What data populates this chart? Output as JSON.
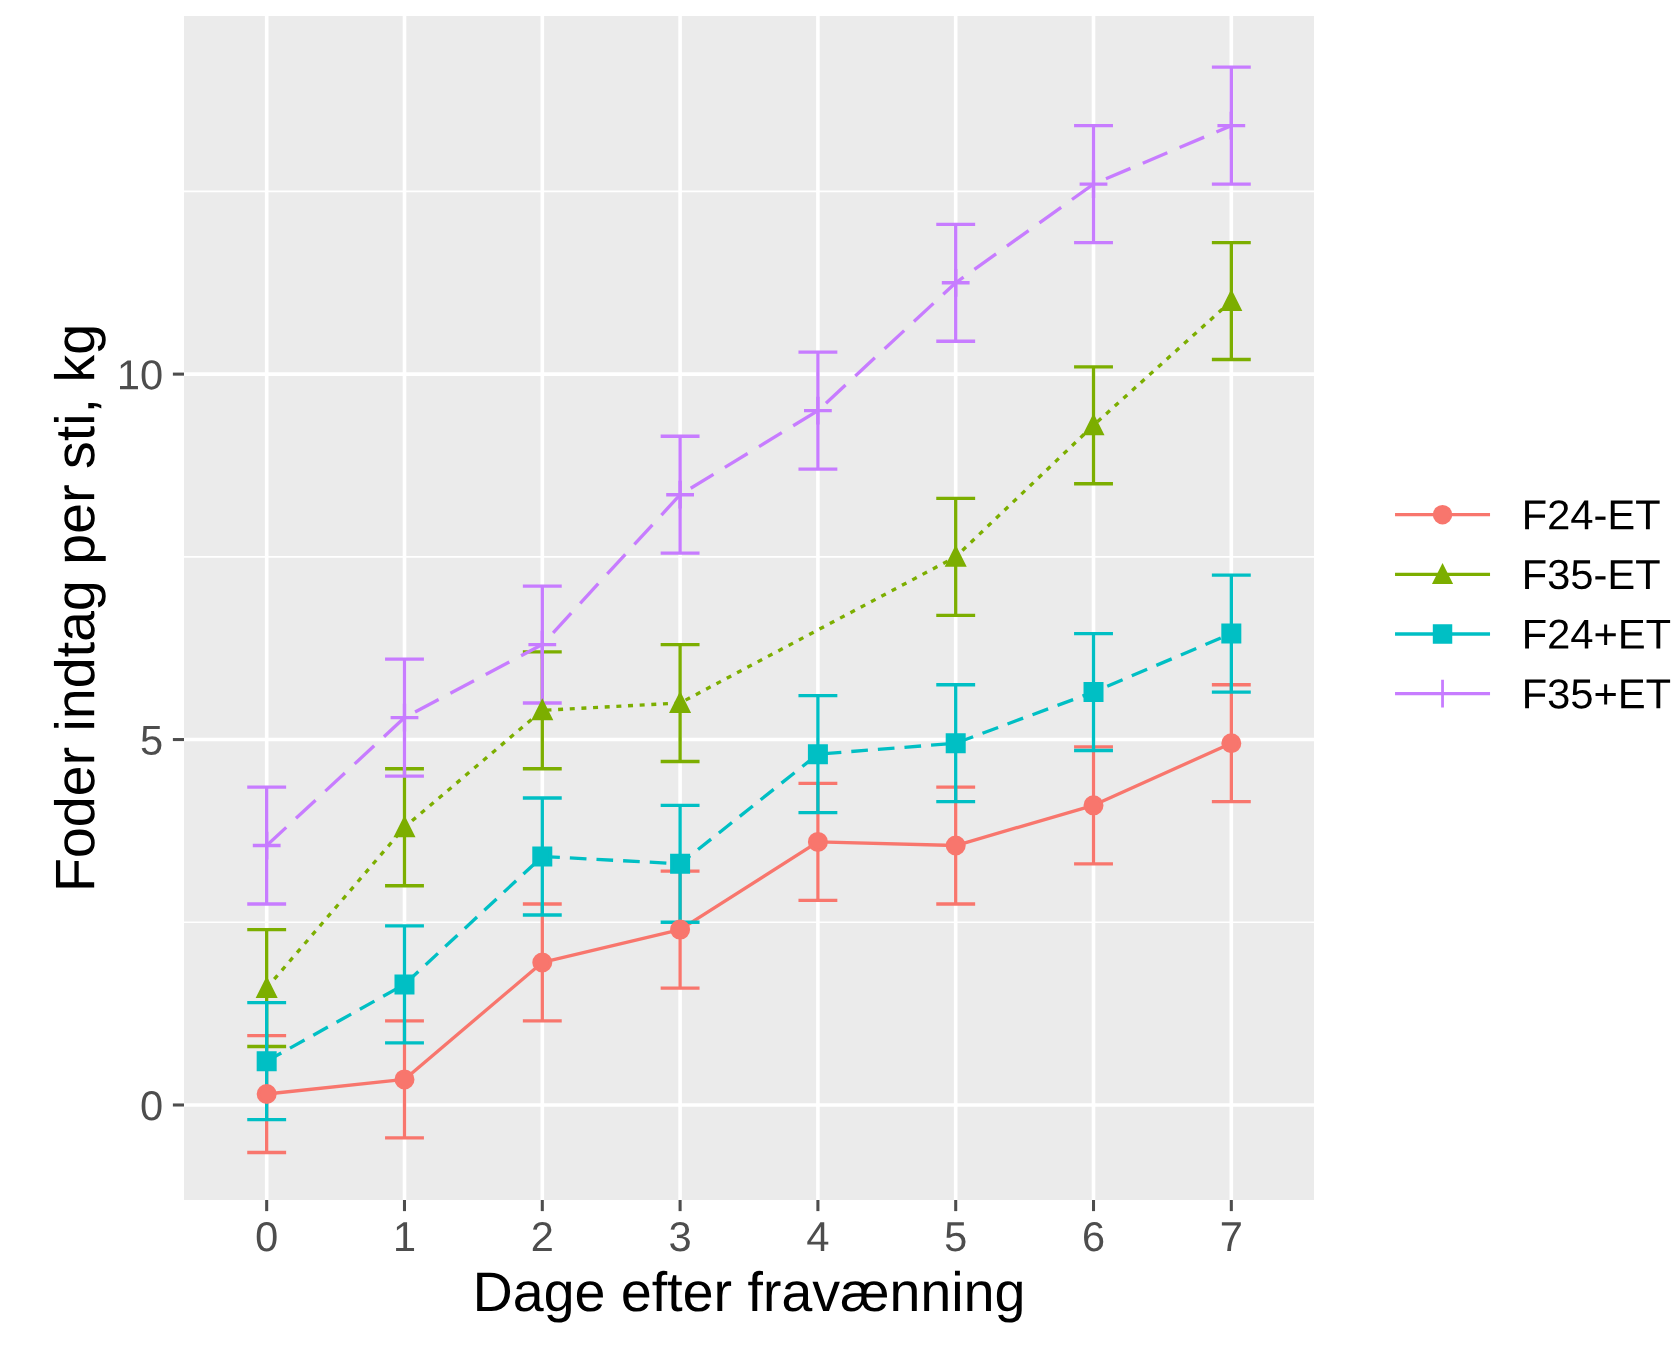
{
  "chart_data": {
    "type": "line",
    "xlabel": "Dage efter fravænning",
    "ylabel": "Foder indtag per sti, kg",
    "x": [
      0,
      1,
      2,
      3,
      4,
      5,
      6,
      7
    ],
    "xlim": [
      -0.6,
      7.6
    ],
    "xticks": [
      0,
      1,
      2,
      3,
      4,
      5,
      6,
      7
    ],
    "ylim": [
      -1.3,
      14.9
    ],
    "yticks": [
      0,
      5,
      10
    ],
    "grid": true,
    "legend": "right",
    "series": [
      {
        "name": "F24-ET",
        "color": "#f8766d",
        "marker": "circle",
        "line_style": "solid",
        "values": [
          0.15,
          0.35,
          1.95,
          2.4,
          3.6,
          3.55,
          4.1,
          4.95
        ],
        "errors": [
          0.8,
          0.8,
          0.8,
          0.8,
          0.8,
          0.8,
          0.8,
          0.8
        ]
      },
      {
        "name": "F35-ET",
        "color": "#7cae00",
        "marker": "triangle",
        "line_style": "dotted",
        "x": [
          0,
          1,
          2,
          3,
          5,
          6,
          7
        ],
        "values": [
          1.6,
          3.8,
          5.4,
          5.5,
          7.5,
          9.3,
          11.0
        ],
        "errors": [
          0.8,
          0.8,
          0.8,
          0.8,
          0.8,
          0.8,
          0.8
        ]
      },
      {
        "name": "F24+ET",
        "color": "#00bfc4",
        "marker": "square",
        "line_style": "dashed",
        "values": [
          0.6,
          1.65,
          3.4,
          3.3,
          4.8,
          4.95,
          5.65,
          6.45
        ],
        "errors": [
          0.8,
          0.8,
          0.8,
          0.8,
          0.8,
          0.8,
          0.8,
          0.8
        ]
      },
      {
        "name": "F35+ET",
        "color": "#c77cff",
        "marker": "cross",
        "line_style": "dashed",
        "values": [
          3.55,
          5.3,
          6.3,
          8.35,
          9.5,
          11.25,
          12.6,
          13.4
        ],
        "errors": [
          0.8,
          0.8,
          0.8,
          0.8,
          0.8,
          0.8,
          0.8,
          0.8
        ]
      }
    ]
  }
}
